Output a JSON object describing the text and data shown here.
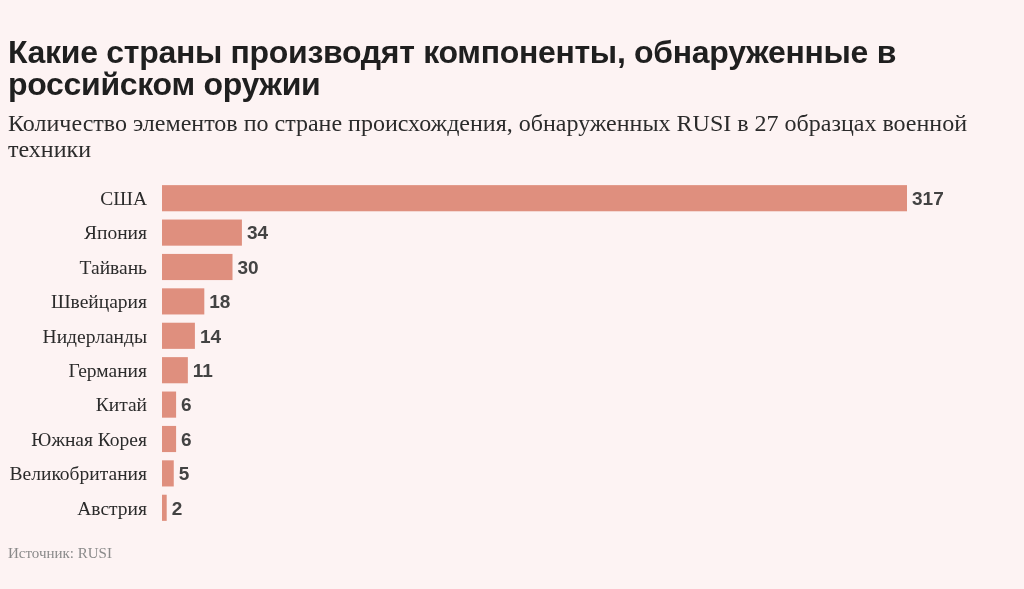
{
  "chart_data": {
    "type": "bar",
    "orientation": "horizontal",
    "title": "Какие страны производят компоненты, обнаруженные в российском оружии",
    "subtitle": "Количество элементов по стране происхождения, обнаруженных RUSI в 27 образцах военной техники",
    "categories": [
      "США",
      "Япония",
      "Тайвань",
      "Швейцария",
      "Нидерланды",
      "Германия",
      "Китай",
      "Южная Корея",
      "Великобритания",
      "Австрия"
    ],
    "values": [
      317,
      34,
      30,
      18,
      14,
      11,
      6,
      6,
      5,
      2
    ],
    "color": "#df8f7e",
    "data_labels": true,
    "annotations": [
      "Источник: RUSI"
    ]
  }
}
